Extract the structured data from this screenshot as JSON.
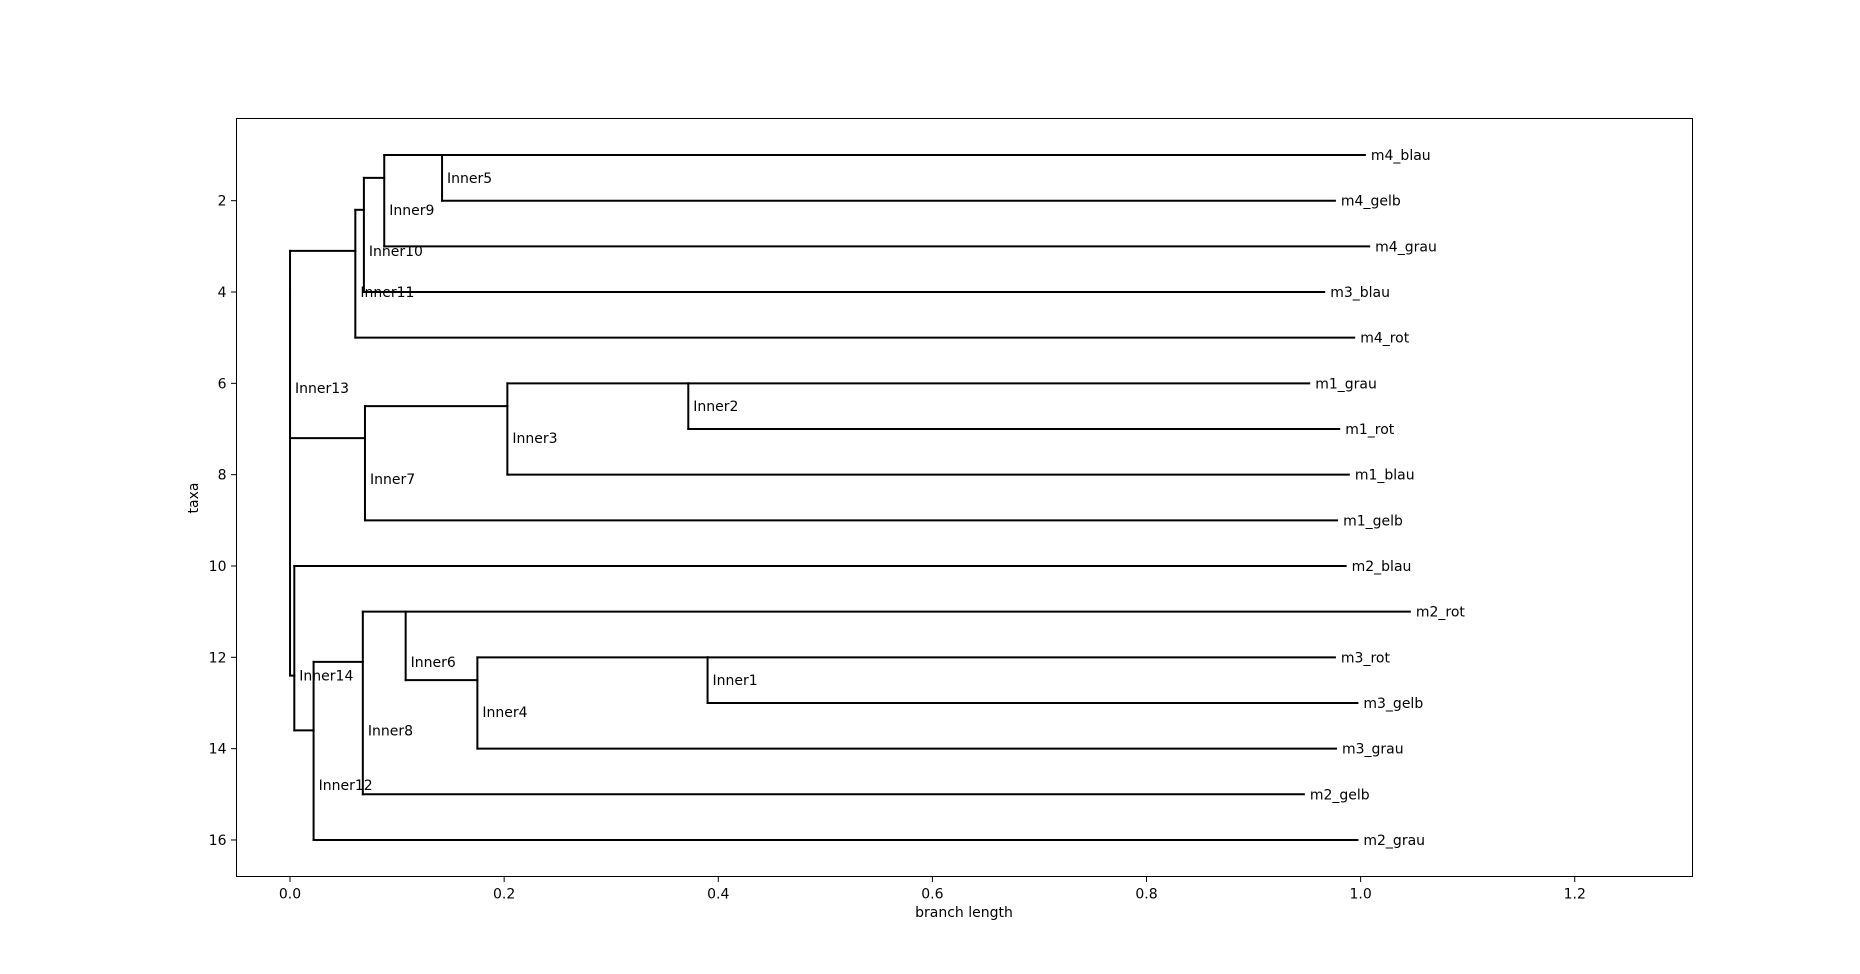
{
  "chart_data": {
    "type": "dendrogram",
    "xlabel": "branch length",
    "ylabel": "taxa",
    "xlim": [
      -0.05,
      1.31
    ],
    "ylim": [
      16.8,
      0.2
    ],
    "xticks": [
      0.0,
      0.2,
      0.4,
      0.6,
      0.8,
      1.0,
      1.2
    ],
    "xtick_labels": [
      "0.0",
      "0.2",
      "0.4",
      "0.6",
      "0.8",
      "1.0",
      "1.2"
    ],
    "yticks": [
      2,
      4,
      6,
      8,
      10,
      12,
      14,
      16
    ],
    "ytick_labels": [
      "2",
      "4",
      "6",
      "8",
      "10",
      "12",
      "14",
      "16"
    ],
    "line_color": "#000000",
    "nodes": [
      {
        "name": "Inner13",
        "x": 0.0,
        "y": 4.0,
        "children": [
          "Inner11",
          "Inner7"
        ],
        "label_y": 6.1
      },
      {
        "name": "Inner11",
        "x": 0.061,
        "y": 3.1,
        "children": [
          "Inner10",
          "m4_rot"
        ],
        "label_y": 4.0
      },
      {
        "name": "Inner10",
        "x": 0.069,
        "y": 2.2,
        "children": [
          "Inner9",
          "m3_blau"
        ],
        "label_y": 3.1
      },
      {
        "name": "Inner9",
        "x": 0.088,
        "y": 1.5,
        "children": [
          "Inner5",
          "m4_grau"
        ],
        "label_y": 2.2
      },
      {
        "name": "Inner5",
        "x": 0.142,
        "y": 1.0,
        "children": [
          "m4_blau",
          "m4_gelb"
        ],
        "label_y": 1.5
      },
      {
        "name": "Inner7",
        "x": 0.07,
        "y": 7.2,
        "children": [
          "Inner3",
          "m1_gelb"
        ],
        "label_y": 8.1
      },
      {
        "name": "Inner3",
        "x": 0.203,
        "y": 6.5,
        "children": [
          "Inner2",
          "m1_blau"
        ],
        "label_y": 7.2
      },
      {
        "name": "Inner2",
        "x": 0.372,
        "y": 6.0,
        "children": [
          "m1_grau",
          "m1_rot"
        ],
        "label_y": 6.5
      },
      {
        "name": "Inner14",
        "x": 0.004,
        "y": 10.0,
        "children": [
          "m2_blau",
          "Inner12"
        ],
        "label_y": 12.4
      },
      {
        "name": "Inner12",
        "x": 0.022,
        "y": 13.6,
        "children": [
          "Inner8",
          "m2_grau"
        ],
        "label_y": 14.8
      },
      {
        "name": "Inner8",
        "x": 0.068,
        "y": 12.1,
        "children": [
          "Inner6",
          "m2_gelb"
        ],
        "label_y": 13.6
      },
      {
        "name": "Inner6",
        "x": 0.108,
        "y": 11.0,
        "children": [
          "m2_rot",
          "Inner4"
        ],
        "label_y": 12.1
      },
      {
        "name": "Inner4",
        "x": 0.175,
        "y": 12.5,
        "children": [
          "Inner1",
          "m3_grau"
        ],
        "label_y": 13.2
      },
      {
        "name": "Inner1",
        "x": 0.39,
        "y": 12.0,
        "children": [
          "m3_rot",
          "m3_gelb"
        ],
        "label_y": 12.5
      }
    ],
    "root": {
      "x_start": 0.0,
      "x_end": 0.004,
      "y_top": 4.0,
      "y_bottom": 12.4,
      "joins": [
        "Inner13",
        "Inner14"
      ]
    },
    "leaves": [
      {
        "name": "m4_blau",
        "x": 1.004,
        "y": 1
      },
      {
        "name": "m4_gelb",
        "x": 0.976,
        "y": 2
      },
      {
        "name": "m4_grau",
        "x": 1.008,
        "y": 3
      },
      {
        "name": "m3_blau",
        "x": 0.966,
        "y": 4
      },
      {
        "name": "m4_rot",
        "x": 0.994,
        "y": 5
      },
      {
        "name": "m1_grau",
        "x": 0.952,
        "y": 6
      },
      {
        "name": "m1_rot",
        "x": 0.98,
        "y": 7
      },
      {
        "name": "m1_blau",
        "x": 0.989,
        "y": 8
      },
      {
        "name": "m1_gelb",
        "x": 0.978,
        "y": 9
      },
      {
        "name": "m2_blau",
        "x": 0.986,
        "y": 10
      },
      {
        "name": "m2_rot",
        "x": 1.046,
        "y": 11
      },
      {
        "name": "m3_rot",
        "x": 0.976,
        "y": 12
      },
      {
        "name": "m3_gelb",
        "x": 0.997,
        "y": 13
      },
      {
        "name": "m3_grau",
        "x": 0.977,
        "y": 14
      },
      {
        "name": "m2_gelb",
        "x": 0.947,
        "y": 15
      },
      {
        "name": "m2_grau",
        "x": 0.997,
        "y": 16
      }
    ]
  }
}
